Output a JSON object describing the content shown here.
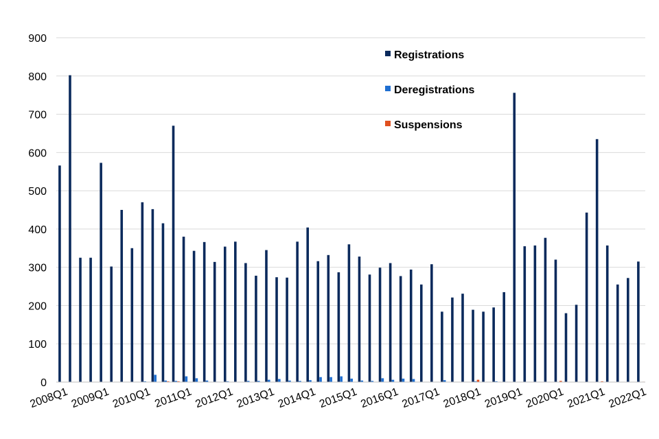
{
  "chart_data": {
    "type": "bar",
    "title": "",
    "xlabel": "",
    "ylabel": "",
    "ylim": [
      0,
      900
    ],
    "yticks": [
      0,
      100,
      200,
      300,
      400,
      500,
      600,
      700,
      800,
      900
    ],
    "grid": true,
    "legend_position": "top-right",
    "xtick_labels": [
      "2008Q1",
      "2009Q1",
      "2010Q1",
      "2011Q1",
      "2012Q1",
      "2013Q1",
      "2014Q1",
      "2015Q1",
      "2016Q1",
      "2017Q1",
      "2018Q1",
      "2019Q1",
      "2020Q1",
      "2021Q1",
      "2022Q1"
    ],
    "categories": [
      "2008Q1",
      "2008Q2",
      "2008Q3",
      "2008Q4",
      "2009Q1",
      "2009Q2",
      "2009Q3",
      "2009Q4",
      "2010Q1",
      "2010Q2",
      "2010Q3",
      "2010Q4",
      "2011Q1",
      "2011Q2",
      "2011Q3",
      "2011Q4",
      "2012Q1",
      "2012Q2",
      "2012Q3",
      "2012Q4",
      "2013Q1",
      "2013Q2",
      "2013Q3",
      "2013Q4",
      "2014Q1",
      "2014Q2",
      "2014Q3",
      "2014Q4",
      "2015Q1",
      "2015Q2",
      "2015Q3",
      "2015Q4",
      "2016Q1",
      "2016Q2",
      "2016Q3",
      "2016Q4",
      "2017Q1",
      "2017Q2",
      "2017Q3",
      "2017Q4",
      "2018Q1",
      "2018Q2",
      "2018Q3",
      "2018Q4",
      "2019Q1",
      "2019Q2",
      "2019Q3",
      "2019Q4",
      "2020Q1",
      "2020Q2",
      "2020Q3",
      "2020Q4",
      "2021Q1",
      "2021Q2",
      "2021Q3",
      "2021Q4",
      "2022Q1"
    ],
    "series": [
      {
        "name": "Registrations",
        "color": "#0b2a5c",
        "values": [
          566,
          802,
          325,
          325,
          573,
          302,
          450,
          350,
          470,
          452,
          415,
          670,
          380,
          343,
          366,
          314,
          354,
          367,
          311,
          278,
          345,
          274,
          273,
          367,
          404,
          316,
          332,
          287,
          360,
          328,
          281,
          299,
          311,
          277,
          294,
          255,
          308,
          184,
          221,
          231,
          189,
          184,
          195,
          235,
          756,
          355,
          357,
          377,
          320,
          180,
          202,
          443,
          635,
          357,
          255,
          272,
          315
        ]
      },
      {
        "name": "Deregistrations",
        "color": "#1f6fd1",
        "values": [
          0,
          0,
          0,
          0,
          0,
          0,
          0,
          0,
          2,
          19,
          4,
          3,
          15,
          10,
          4,
          1,
          2,
          0,
          3,
          3,
          6,
          8,
          4,
          3,
          5,
          13,
          13,
          15,
          9,
          4,
          3,
          10,
          6,
          9,
          8,
          0,
          0,
          5,
          0,
          0,
          2,
          0,
          2,
          1,
          0,
          0,
          0,
          0,
          0,
          0,
          0,
          0,
          0,
          0,
          0,
          0,
          0
        ]
      },
      {
        "name": "Suspensions",
        "color": "#e0501f",
        "values": [
          0,
          0,
          0,
          0,
          0,
          0,
          0,
          0,
          0,
          0,
          2,
          2,
          0,
          0,
          0,
          0,
          0,
          0,
          0,
          0,
          0,
          0,
          0,
          0,
          0,
          0,
          0,
          0,
          0,
          0,
          0,
          0,
          0,
          0,
          0,
          0,
          0,
          0,
          0,
          0,
          6,
          0,
          0,
          0,
          0,
          0,
          0,
          0,
          3,
          0,
          0,
          0,
          2,
          0,
          0,
          0,
          1
        ]
      }
    ]
  }
}
